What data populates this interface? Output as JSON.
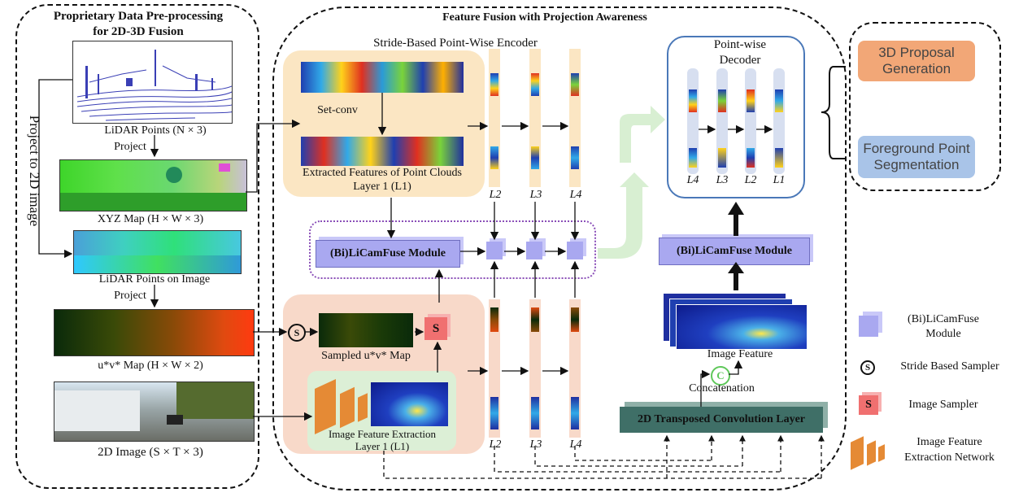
{
  "left_panel": {
    "title_line1": "Proprietary Data Pre-processing",
    "title_line2": "for 2D-3D Fusion",
    "side_label": "Project to 2D image",
    "lidar_points": "LiDAR Points (N × 3)",
    "project1": "Project",
    "xyz_map": "XYZ Map (H × W × 3)",
    "lidar_on_image": "LiDAR Points on Image",
    "project2": "Project",
    "uv_map": "u*v* Map (H × W × 2)",
    "image_2d": "2D Image (S × T × 3)"
  },
  "middle_panel": {
    "title": "Feature Fusion with Projection Awareness",
    "encoder_title": "Stride-Based Point-Wise Encoder",
    "set_conv": "Set-conv",
    "extracted_line1": "Extracted Features of Point Clouds",
    "extracted_line2": "Layer 1 (L1)",
    "licamfuse_left": "(Bi)LiCamFuse Module",
    "licamfuse_right": "(Bi)LiCamFuse Module",
    "sampled_uv": "Sampled u*v* Map",
    "image_sampler_glyph": "S",
    "stride_glyph": "S",
    "img_feat_line1": "Image Feature Extraction",
    "img_feat_line2": "Layer 1 (L1)",
    "decoder_line1": "Point-wise",
    "decoder_line2": "Decoder",
    "image_feature": "Image Feature",
    "concat_glyph": "C",
    "concatenation": "Concatenation",
    "transposed_conv": "2D Transposed Convolution Layer",
    "enc_labels_top": [
      "L2",
      "L3",
      "L4"
    ],
    "enc_labels_bottom": [
      "L2",
      "L3",
      "L4"
    ],
    "dec_labels": [
      "L4",
      "L3",
      "L2",
      "L1"
    ]
  },
  "right_panel": {
    "proposal_line1": "3D Proposal",
    "proposal_line2": "Generation",
    "segment_line1": "Foreground Point",
    "segment_line2": "Segmentation"
  },
  "legend": {
    "licamfuse_line1": "(Bi)LiCamFuse",
    "licamfuse_line2": "Module",
    "stride_sampler": "Stride Based Sampler",
    "image_sampler": "Image Sampler",
    "network_line1": "Image Feature",
    "network_line2": "Extraction Network"
  },
  "colors": {
    "proposal_fill": "#f2a777",
    "segment_fill": "#a9c4e8",
    "encoder_bg": "#fbe6c3",
    "image_branch_bg": "#f8d9c9",
    "cube": "#a9a8f0",
    "transposed_conv": "#3f6f67",
    "decoder_border": "#4a78b8",
    "fuse_border": "#8a4fb8",
    "sampler_red": "#f07070"
  }
}
